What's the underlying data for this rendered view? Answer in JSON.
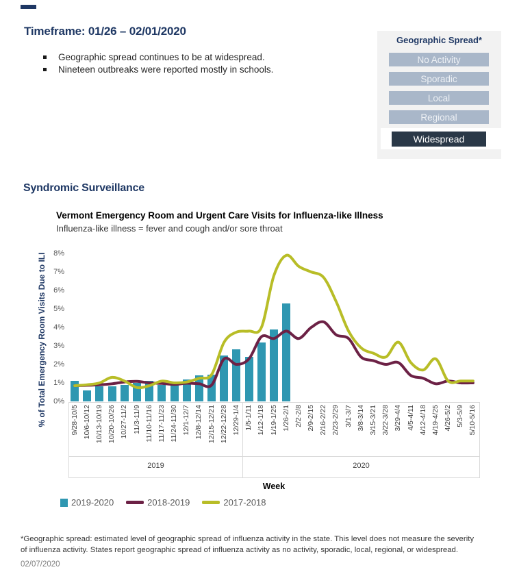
{
  "page": {
    "timeframe_title": "Timeframe: 01/26 – 02/01/2020",
    "bullets": [
      "Geographic spread continues to be at widespread.",
      "Nineteen outbreaks were reported mostly in schools."
    ],
    "section_title": "Syndromic Surveillance",
    "footnote_line1": "*Geographic spread: estimated level of geographic spread of influenza activity in the state. This level does not measure the severity",
    "footnote_line2": "of influenza activity.  States report geographic spread of influenza activity as no activity, sporadic, local, regional, or widespread.",
    "date": "02/07/2020"
  },
  "geo_spread": {
    "title": "Geographic Spread*",
    "levels": [
      "No Activity",
      "Sporadic",
      "Local",
      "Regional",
      "Widespread"
    ],
    "selected": "Widespread",
    "colors": {
      "panel_bg": "#f2f2f2",
      "inactive_bg": "#a9b7c9",
      "active_bg": "#2a3847",
      "title_color": "#1f3864"
    }
  },
  "chart_data": {
    "type": "bar",
    "title": "Vermont Emergency Room and Urgent Care Visits for Influenza-like Illness",
    "subtitle": "Influenza-like illness = fever and cough and/or sore throat",
    "ylabel": "% of Total Emergency Room Visits Due to ILI",
    "xlabel": "Week",
    "ylim": [
      0,
      8
    ],
    "ytick_labels": [
      "0%",
      "1%",
      "2%",
      "3%",
      "4%",
      "5%",
      "6%",
      "7%",
      "8%"
    ],
    "grid": false,
    "legend_position": "bottom",
    "categories": [
      "9/28-10/5",
      "10/6-10/12",
      "10/13-10/19",
      "10/20-10/26",
      "10/27-11/2",
      "11/3-11/9",
      "11/10-11/16",
      "11/17-11/23",
      "11/24-11/30",
      "12/1-12/7",
      "12/8-12/14",
      "12/15-12/21",
      "12/22-12/28",
      "12/29-1/4",
      "1/5-1/11",
      "1/12-1/18",
      "1/19-1/25",
      "1/26-2/1",
      "2/2-2/8",
      "2/9-2/15",
      "2/16-2/22",
      "2/23-2/29",
      "3/1-3/7",
      "3/8-3/14",
      "3/15-3/21",
      "3/22-3/28",
      "3/29-4/4",
      "4/5-4/11",
      "4/12-4/18",
      "4/19-4/25",
      "4/26-5/2",
      "5/3-5/9",
      "5/10-5/16"
    ],
    "year_bands": [
      {
        "label": "2019",
        "from_index": 0,
        "to_index": 13
      },
      {
        "label": "2020",
        "from_index": 14,
        "to_index": 32
      }
    ],
    "series": [
      {
        "name": "2019-2020",
        "type": "bar",
        "color": "#2f97b1",
        "values": [
          1.1,
          0.6,
          0.8,
          0.8,
          0.9,
          1.0,
          1.1,
          0.9,
          0.9,
          1.2,
          1.4,
          1.45,
          2.5,
          2.8,
          2.4,
          3.2,
          3.9,
          5.3
        ]
      },
      {
        "name": "2018-2019",
        "type": "line",
        "color": "#6c2145",
        "values": [
          0.85,
          0.87,
          0.9,
          0.95,
          1.05,
          1.08,
          1.0,
          0.97,
          0.92,
          0.98,
          0.95,
          0.88,
          2.3,
          2.0,
          2.3,
          3.5,
          3.4,
          3.8,
          3.4,
          4.0,
          4.3,
          3.6,
          3.4,
          2.4,
          2.2,
          2.0,
          2.1,
          1.4,
          1.25,
          0.95,
          1.1,
          1.0,
          1.0
        ]
      },
      {
        "name": "2017-2018",
        "type": "line",
        "color": "#b8bd27",
        "values": [
          0.85,
          0.9,
          1.0,
          1.3,
          1.1,
          0.75,
          0.85,
          1.1,
          1.0,
          1.05,
          1.25,
          1.45,
          3.2,
          3.75,
          3.8,
          4.0,
          6.8,
          7.9,
          7.3,
          7.0,
          6.7,
          5.4,
          3.8,
          2.9,
          2.6,
          2.4,
          3.2,
          2.1,
          1.7,
          2.3,
          1.1,
          1.1,
          1.1
        ]
      }
    ]
  }
}
